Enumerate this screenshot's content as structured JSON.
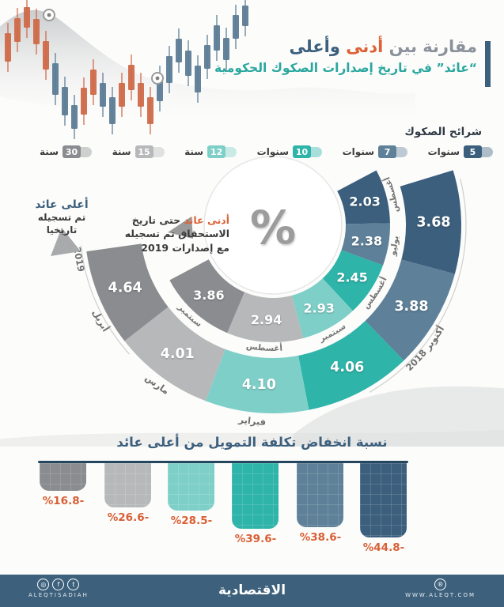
{
  "title": {
    "part_gray": "مقارنة بين",
    "part_orange": "أدنى",
    "part_blue": "وأعلى",
    "subtitle": "“عائد” في تاريخ إصدارات الصكوك الحكومية"
  },
  "legend": {
    "header": "شرائح الصكوك",
    "items": [
      {
        "num": "5",
        "unit": "سنوات",
        "color": "#3b5f7d"
      },
      {
        "num": "7",
        "unit": "سنوات",
        "color": "#5e8098"
      },
      {
        "num": "10",
        "unit": "سنوات",
        "color": "#2eb4a9"
      },
      {
        "num": "12",
        "unit": "سنة",
        "color": "#7ecfc8"
      },
      {
        "num": "15",
        "unit": "سنة",
        "color": "#b7b8ba"
      },
      {
        "num": "30",
        "unit": "سنة",
        "color": "#8a8c8f"
      }
    ]
  },
  "annotations": {
    "highest_title": "أعلى عائد",
    "highest_sub": "تم تسجيله تاريخيا",
    "lowest_highlight": "أدنى عائد",
    "lowest_line1": "حتى تاريخ",
    "lowest_line2": "الاستحقاق تم تسجيله",
    "lowest_line3": "مع إصدارات 2019"
  },
  "center_symbol": "%",
  "chart_data": [
    {
      "type": "radial-donut",
      "title": "مقارنة بين أدنى وأعلى عائد في تاريخ إصدارات الصكوك الحكومية",
      "categories": [
        "5 سنوات",
        "7 سنوات",
        "10 سنوات",
        "12 سنة",
        "15 سنة",
        "30 سنة"
      ],
      "colors": [
        "#3b5f7d",
        "#5e8098",
        "#2eb4a9",
        "#7ecfc8",
        "#b7b8ba",
        "#8a8c8f"
      ],
      "series": [
        {
          "name": "أدنى عائد حتى تاريخ الاستحقاق (إصدارات 2019)",
          "ring": "inner",
          "values": [
            2.03,
            2.38,
            2.45,
            2.93,
            2.94,
            3.86
          ],
          "months": [
            "أغسطس",
            "يوليو",
            "أغسطس",
            "سبتمبر",
            "أغسطس",
            "سبتمبر"
          ]
        },
        {
          "name": "أعلى عائد تم تسجيله تاريخيا",
          "ring": "outer",
          "values": [
            3.68,
            3.88,
            4.06,
            4.1,
            4.01,
            4.64
          ],
          "months": [
            "أكتوبر 2018",
            "أكتوبر 2018",
            "أكتوبر 2018",
            "فبراير",
            "مارس",
            "أبريل 2019"
          ]
        }
      ],
      "outer_arc_labels": [
        "أكتوبر 2018",
        "فبراير",
        "مارس",
        "أبريل",
        "2019"
      ]
    },
    {
      "type": "bar",
      "title": "نسبة انخفاض تكلفة التمويل من أعلى عائد",
      "bars": [
        {
          "tenor": "30 سنة",
          "value": -16.8,
          "label": "%16.8-",
          "color": "#8a8c8f"
        },
        {
          "tenor": "15 سنة",
          "value": -26.6,
          "label": "%26.6-",
          "color": "#b7b8ba"
        },
        {
          "tenor": "12 سنة",
          "value": -28.5,
          "label": "%28.5-",
          "color": "#7ecfc8"
        },
        {
          "tenor": "10 سنوات",
          "value": -39.6,
          "label": "%39.6-",
          "color": "#2eb4a9"
        },
        {
          "tenor": "7 سنوات",
          "value": -38.6,
          "label": "%38.6-",
          "color": "#5e8098"
        },
        {
          "tenor": "5 سنوات",
          "value": -44.8,
          "label": "%44.8-",
          "color": "#3b5f7d"
        }
      ]
    }
  ],
  "footer": {
    "brand": "الاقتصادية",
    "handle": "ALEQTISADIAH",
    "website": "WWW.ALEQT.COM",
    "icons": {
      "instagram": "◎",
      "facebook": "f",
      "twitter": "t",
      "web": "®"
    }
  }
}
